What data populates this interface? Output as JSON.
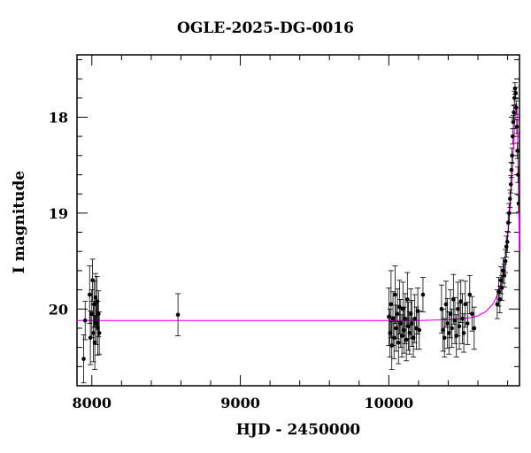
{
  "chart_data": {
    "type": "scatter",
    "title": "OGLE-2025-DG-0016",
    "xlabel": "HJD - 2450000",
    "ylabel": "I magnitude",
    "xlim": [
      7900,
      10880
    ],
    "ylim": [
      20.8,
      17.35
    ],
    "y_inverted": true,
    "xticks": [
      8000,
      9000,
      10000
    ],
    "xtick_labels": [
      "8000",
      "9000",
      "10000"
    ],
    "yticks": [
      18,
      19,
      20
    ],
    "ytick_labels": [
      "18",
      "19",
      "20"
    ],
    "grid": false,
    "point_color": "#000000",
    "model_color": "#ff00ff",
    "series": [
      {
        "kind": "photometry",
        "x": [
          7945,
          7955,
          7985,
          7990,
          8000,
          8005,
          8010,
          8015,
          8020,
          8025,
          8030,
          8035,
          8040,
          8045,
          8050,
          8580,
          10000,
          10008,
          10015,
          10020,
          10028,
          10035,
          10042,
          10050,
          10058,
          10065,
          10072,
          10080,
          10088,
          10095,
          10102,
          10110,
          10118,
          10125,
          10132,
          10140,
          10148,
          10155,
          10165,
          10175,
          10185,
          10195,
          10205,
          10230,
          10355,
          10365,
          10375,
          10385,
          10395,
          10405,
          10415,
          10425,
          10435,
          10445,
          10455,
          10465,
          10475,
          10485,
          10495,
          10505,
          10515,
          10530,
          10545,
          10560,
          10575,
          10730,
          10740,
          10748,
          10755,
          10762,
          10770,
          10778,
          10785,
          10792,
          10798,
          10804,
          10810,
          10816,
          10822,
          10826,
          10830,
          10834,
          10838,
          10842,
          10846,
          10850,
          10854,
          10858,
          10862,
          10866,
          10870,
          10874
        ],
        "y": [
          20.52,
          20.12,
          19.85,
          20.3,
          20.05,
          19.7,
          20.25,
          19.95,
          20.35,
          19.88,
          20.15,
          19.92,
          20.2,
          20.05,
          20.25,
          20.06,
          20.08,
          20.25,
          19.95,
          20.38,
          20.1,
          20.3,
          19.85,
          20.2,
          20.05,
          20.35,
          19.98,
          20.15,
          20.28,
          20.0,
          20.22,
          20.1,
          20.32,
          19.9,
          20.18,
          20.25,
          20.05,
          20.15,
          20.3,
          20.1,
          20.2,
          20.02,
          20.22,
          19.85,
          20.0,
          20.22,
          20.3,
          19.95,
          20.15,
          20.25,
          20.05,
          20.2,
          19.9,
          20.12,
          20.28,
          20.0,
          20.18,
          19.92,
          20.1,
          20.25,
          19.95,
          20.15,
          19.85,
          20.05,
          20.2,
          19.95,
          19.82,
          19.9,
          19.7,
          19.78,
          19.6,
          19.65,
          19.5,
          19.35,
          19.3,
          19.1,
          19.0,
          18.85,
          18.7,
          18.55,
          18.4,
          18.2,
          18.05,
          17.95,
          17.8,
          17.7,
          17.75,
          17.9,
          18.1,
          18.35,
          18.6,
          18.9
        ],
        "yerr": [
          0.25,
          0.2,
          0.3,
          0.28,
          0.25,
          0.22,
          0.3,
          0.24,
          0.28,
          0.25,
          0.22,
          0.26,
          0.28,
          0.24,
          0.22,
          0.22,
          0.3,
          0.25,
          0.35,
          0.25,
          0.28,
          0.22,
          0.3,
          0.24,
          0.26,
          0.22,
          0.28,
          0.25,
          0.22,
          0.28,
          0.24,
          0.26,
          0.22,
          0.28,
          0.25,
          0.22,
          0.26,
          0.24,
          0.2,
          0.25,
          0.22,
          0.24,
          0.2,
          0.18,
          0.25,
          0.22,
          0.2,
          0.24,
          0.26,
          0.22,
          0.25,
          0.2,
          0.26,
          0.24,
          0.22,
          0.28,
          0.24,
          0.22,
          0.26,
          0.2,
          0.24,
          0.22,
          0.2,
          0.18,
          0.22,
          0.15,
          0.15,
          0.14,
          0.14,
          0.13,
          0.13,
          0.12,
          0.12,
          0.11,
          0.11,
          0.1,
          0.1,
          0.09,
          0.09,
          0.08,
          0.08,
          0.08,
          0.07,
          0.07,
          0.07,
          0.06,
          0.06,
          0.07,
          0.07,
          0.08,
          0.08,
          0.09
        ]
      },
      {
        "kind": "model",
        "x": [
          7900,
          8500,
          9000,
          9500,
          10000,
          10200,
          10400,
          10500,
          10550,
          10600,
          10650,
          10700,
          10730,
          10760,
          10780,
          10800,
          10815,
          10830,
          10840,
          10850,
          10856,
          10862,
          10868,
          10874,
          10880
        ],
        "y": [
          20.12,
          20.12,
          20.12,
          20.12,
          20.12,
          20.12,
          20.11,
          20.1,
          20.09,
          20.07,
          20.03,
          19.95,
          19.86,
          19.7,
          19.52,
          19.25,
          18.98,
          18.6,
          18.3,
          17.95,
          17.85,
          17.9,
          18.25,
          18.9,
          19.4
        ]
      }
    ]
  }
}
